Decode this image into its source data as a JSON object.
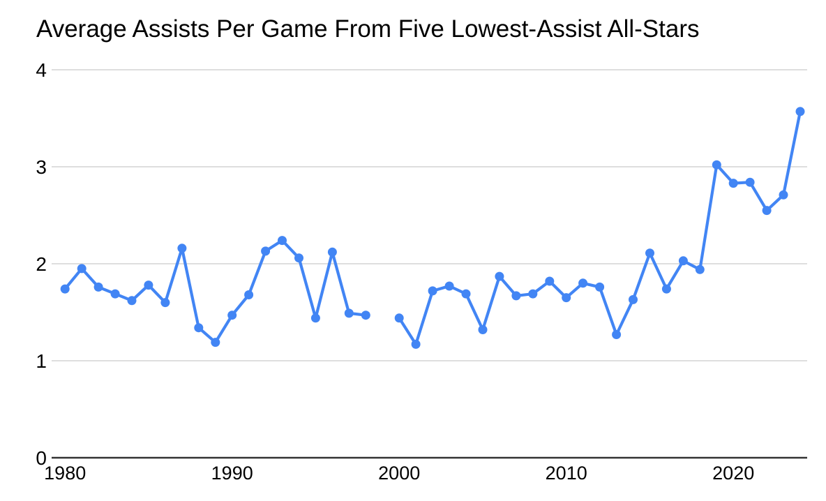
{
  "chart_data": {
    "type": "line",
    "title": "Average Assists Per Game From Five Lowest-Assist All-Stars",
    "xlabel": "",
    "ylabel": "",
    "legend": "none",
    "grid": "horizontal",
    "ylim": [
      0,
      4.17
    ],
    "xlim": [
      1980,
      2024
    ],
    "x": [
      1980,
      1981,
      1982,
      1983,
      1984,
      1985,
      1986,
      1987,
      1988,
      1989,
      1990,
      1991,
      1992,
      1993,
      1994,
      1995,
      1996,
      1997,
      1998,
      2000,
      2001,
      2002,
      2003,
      2004,
      2005,
      2006,
      2007,
      2008,
      2009,
      2010,
      2011,
      2012,
      2013,
      2014,
      2015,
      2016,
      2017,
      2018,
      2019,
      2020,
      2021,
      2022,
      2023,
      2024
    ],
    "values": [
      1.74,
      1.95,
      1.76,
      1.69,
      1.62,
      1.78,
      1.6,
      2.16,
      1.34,
      1.19,
      1.47,
      1.68,
      2.13,
      2.24,
      2.06,
      1.44,
      2.12,
      1.49,
      1.47,
      1.44,
      1.17,
      1.72,
      1.77,
      1.69,
      1.32,
      1.87,
      1.67,
      1.69,
      1.82,
      1.65,
      1.8,
      1.76,
      1.27,
      1.63,
      2.11,
      1.74,
      2.03,
      1.94,
      3.02,
      2.83,
      2.84,
      2.55,
      2.71,
      3.57
    ],
    "missing_years": [
      1999
    ],
    "x_ticks": [
      1980,
      1990,
      2000,
      2010,
      2020
    ],
    "y_ticks": [
      0,
      1,
      2,
      3,
      4
    ],
    "colors": {
      "line": "#4285f4",
      "marker": "#4285f4",
      "gridline": "#d9d9d9",
      "axis": "#333333",
      "text": "#000000",
      "background": "#ffffff"
    }
  }
}
